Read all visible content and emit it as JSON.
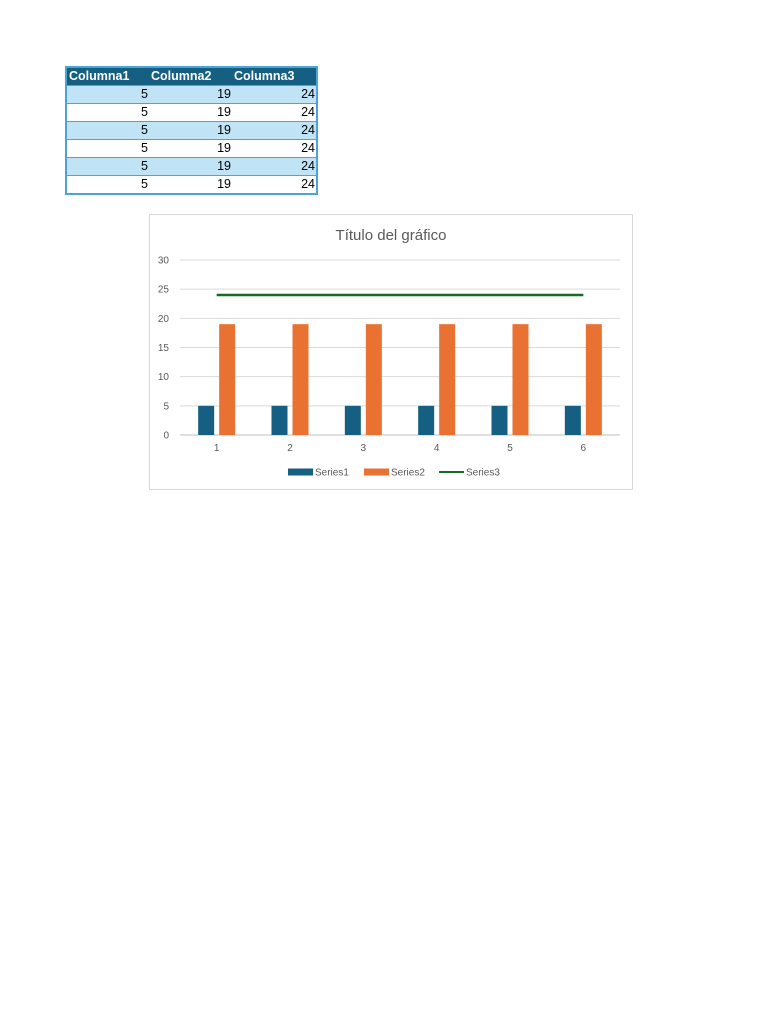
{
  "table": {
    "headers": [
      "Columna1",
      "Columna2",
      "Columna3"
    ],
    "rows": [
      [
        5,
        19,
        24
      ],
      [
        5,
        19,
        24
      ],
      [
        5,
        19,
        24
      ],
      [
        5,
        19,
        24
      ],
      [
        5,
        19,
        24
      ],
      [
        5,
        19,
        24
      ]
    ],
    "colors": {
      "header_bg": "#156082",
      "band_bg": "#c0e4f5",
      "border": "#4ba3d9"
    }
  },
  "chart_data": {
    "type": "bar",
    "title": "Título del gráfico",
    "xlabel": "",
    "ylabel": "",
    "categories": [
      "1",
      "2",
      "3",
      "4",
      "5",
      "6"
    ],
    "series": [
      {
        "name": "Series1",
        "type": "bar",
        "values": [
          5,
          5,
          5,
          5,
          5,
          5
        ],
        "color": "#156082"
      },
      {
        "name": "Series2",
        "type": "bar",
        "values": [
          19,
          19,
          19,
          19,
          19,
          19
        ],
        "color": "#e97132"
      },
      {
        "name": "Series3",
        "type": "line",
        "values": [
          24,
          24,
          24,
          24,
          24,
          24
        ],
        "color": "#196b24"
      }
    ],
    "ylim": [
      0,
      30
    ],
    "yticks": [
      0,
      5,
      10,
      15,
      20,
      25,
      30
    ],
    "grid": true,
    "legend": "bottom"
  }
}
